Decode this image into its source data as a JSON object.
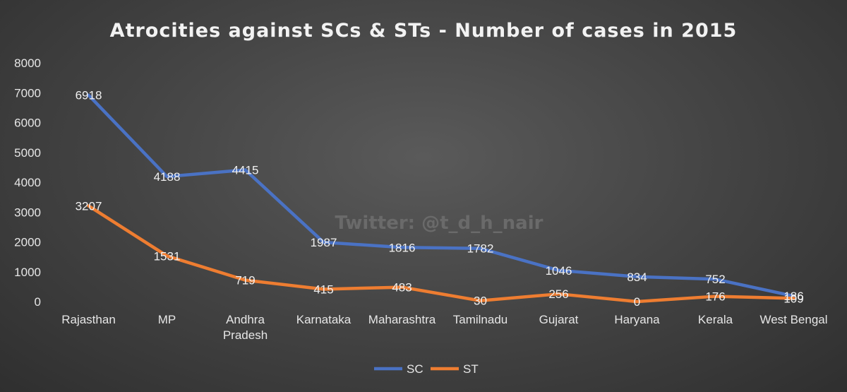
{
  "chart_data": {
    "type": "line",
    "title": "Atrocities against SCs & STs - Number of cases in 2015",
    "categories": [
      "Rajasthan",
      "MP",
      "Andhra Pradesh",
      "Karnataka",
      "Maharashtra",
      "Tamilnadu",
      "Gujarat",
      "Haryana",
      "Kerala",
      "West Bengal"
    ],
    "series": [
      {
        "name": "SC",
        "color": "#4a72c4",
        "values": [
          6918,
          4188,
          4415,
          1987,
          1816,
          1782,
          1046,
          834,
          752,
          186
        ]
      },
      {
        "name": "ST",
        "color": "#ee7d31",
        "values": [
          3207,
          1531,
          719,
          415,
          483,
          30,
          256,
          0,
          176,
          109
        ]
      }
    ],
    "yticks": [
      0,
      1000,
      2000,
      3000,
      4000,
      5000,
      6000,
      7000,
      8000
    ],
    "ylim": [
      0,
      8000
    ],
    "grid": false,
    "legend": "bottom",
    "watermark": "Twitter: @t_d_h_nair",
    "background": "#464646"
  }
}
